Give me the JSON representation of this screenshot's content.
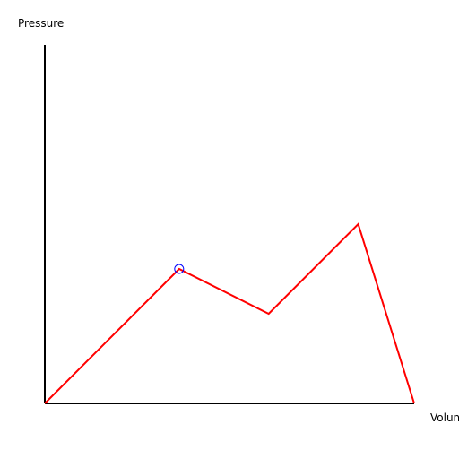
{
  "chart_data": {
    "type": "line",
    "xlabel": "Volun",
    "ylabel": "Pressure",
    "x": [
      0,
      3,
      5,
      7,
      8.25
    ],
    "y": [
      0,
      3,
      2,
      4,
      0
    ],
    "xlim": [
      0,
      8.25
    ],
    "ylim": [
      0,
      8
    ],
    "grid": false,
    "marker_index": 1,
    "colors": {
      "series": "#ff0000",
      "marker": "#0000ff",
      "axes": "#000000"
    }
  }
}
